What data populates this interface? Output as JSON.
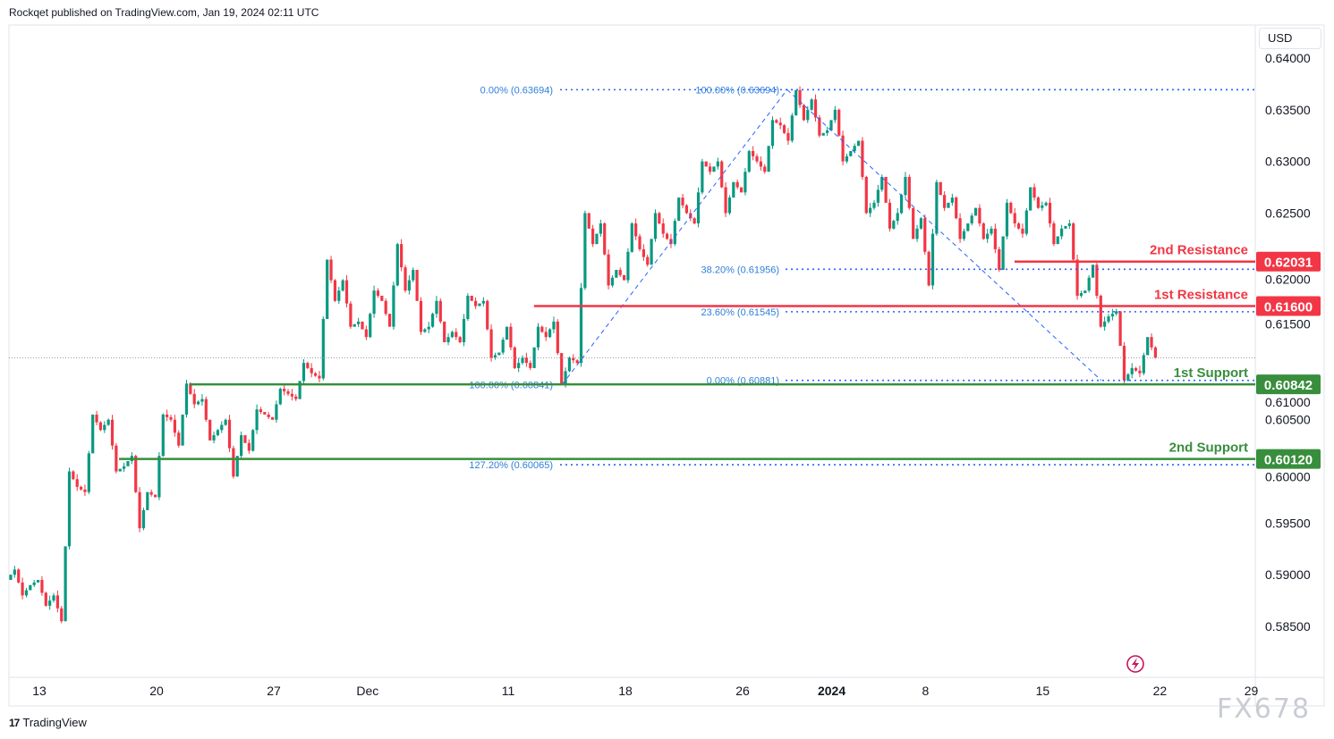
{
  "header": {
    "publisher_line": "Rockqet published on TradingView.com, Jan 19, 2024 02:11 UTC"
  },
  "currency_button": "USD",
  "branding": {
    "logo_text": "TradingView",
    "logo_mark": "17",
    "watermark": "FX678"
  },
  "colors": {
    "up": "#089981",
    "down": "#f23645",
    "resistance": "#f23645",
    "support": "#388e3c",
    "fib": "#2962ff",
    "fib_text": "#2f7fd8"
  },
  "chart_data": {
    "type": "candlestick",
    "title": "",
    "xlabel": "",
    "ylabel": "",
    "ylim": [
      0.585,
      0.64
    ],
    "y_ticks": [
      "0.64000",
      "0.63500",
      "0.63000",
      "0.62500",
      "0.62000",
      "0.61500",
      "0.61000",
      "0.60500",
      "0.60000",
      "0.59500",
      "0.59000",
      "0.58500"
    ],
    "x_ticks": [
      {
        "label": "13",
        "day": 0
      },
      {
        "label": "20",
        "day": 5
      },
      {
        "label": "27",
        "day": 10
      },
      {
        "label": "Dec",
        "day": 14
      },
      {
        "label": "11",
        "day": 20
      },
      {
        "label": "18",
        "day": 25
      },
      {
        "label": "26",
        "day": 30
      },
      {
        "label": "2024",
        "day": 33.8
      },
      {
        "label": "8",
        "day": 37.8
      },
      {
        "label": "15",
        "day": 42.8
      },
      {
        "label": "22",
        "day": 47.8
      },
      {
        "label": "29",
        "day": 51.7
      }
    ],
    "candles_daily_ohlc": [
      [
        "Nov 10",
        0.5895,
        0.5905,
        0.588,
        0.589
      ],
      [
        "Nov 13",
        0.589,
        0.5895,
        0.587,
        0.588
      ],
      [
        "Nov 14",
        0.588,
        0.6,
        0.5855,
        0.5985
      ],
      [
        "Nov 15",
        0.5985,
        0.6055,
        0.598,
        0.604
      ],
      [
        "Nov 16",
        0.604,
        0.605,
        0.6,
        0.6005
      ],
      [
        "Nov 17",
        0.6005,
        0.6015,
        0.5945,
        0.598
      ],
      [
        "Nov 20",
        0.598,
        0.6055,
        0.5975,
        0.605
      ],
      [
        "Nov 21",
        0.605,
        0.6085,
        0.6025,
        0.6065
      ],
      [
        "Nov 22",
        0.6065,
        0.607,
        0.603,
        0.604
      ],
      [
        "Nov 23",
        0.604,
        0.605,
        0.5995,
        0.6035
      ],
      [
        "Nov 24",
        0.6035,
        0.606,
        0.602,
        0.6055
      ],
      [
        "Nov 27",
        0.6055,
        0.608,
        0.605,
        0.6075
      ],
      [
        "Nov 28",
        0.6075,
        0.6105,
        0.607,
        0.6095
      ],
      [
        "Nov 29",
        0.6095,
        0.6205,
        0.609,
        0.6165
      ],
      [
        "Nov 30",
        0.6165,
        0.6185,
        0.614,
        0.6145
      ],
      [
        "Dec 1",
        0.6145,
        0.6175,
        0.613,
        0.6165
      ],
      [
        "Dec 4",
        0.6165,
        0.622,
        0.614,
        0.6175
      ],
      [
        "Dec 5",
        0.6175,
        0.6195,
        0.6135,
        0.614
      ],
      [
        "Dec 6",
        0.614,
        0.6165,
        0.6125,
        0.6135
      ],
      [
        "Dec 7",
        0.6135,
        0.617,
        0.6125,
        0.616
      ],
      [
        "Dec 8",
        0.616,
        0.6165,
        0.611,
        0.6115
      ],
      [
        "Dec 11",
        0.6115,
        0.614,
        0.61,
        0.611
      ],
      [
        "Dec 12",
        0.611,
        0.614,
        0.61,
        0.613
      ],
      [
        "Dec 13",
        0.613,
        0.6145,
        0.6084,
        0.611
      ],
      [
        "Dec 14",
        0.611,
        0.625,
        0.6105,
        0.622
      ],
      [
        "Dec 15",
        0.622,
        0.624,
        0.618,
        0.6195
      ],
      [
        "Dec 18",
        0.6195,
        0.624,
        0.6185,
        0.6215
      ],
      [
        "Dec 19",
        0.6215,
        0.625,
        0.62,
        0.623
      ],
      [
        "Dec 20",
        0.623,
        0.6265,
        0.622,
        0.625
      ],
      [
        "Dec 21",
        0.625,
        0.63,
        0.624,
        0.629
      ],
      [
        "Dec 22",
        0.629,
        0.63,
        0.625,
        0.628
      ],
      [
        "Dec 26",
        0.628,
        0.631,
        0.627,
        0.63
      ],
      [
        "Dec 27",
        0.63,
        0.634,
        0.629,
        0.6335
      ],
      [
        "Dec 28",
        0.6335,
        0.6369,
        0.632,
        0.634
      ],
      [
        "Dec 29",
        0.634,
        0.636,
        0.6325,
        0.633
      ],
      [
        "Jan 2",
        0.633,
        0.635,
        0.63,
        0.631
      ],
      [
        "Jan 3",
        0.631,
        0.632,
        0.625,
        0.626
      ],
      [
        "Jan 4",
        0.626,
        0.6285,
        0.6235,
        0.625
      ],
      [
        "Jan 5",
        0.625,
        0.6285,
        0.6225,
        0.6245
      ],
      [
        "Jan 8",
        0.6245,
        0.628,
        0.618,
        0.6255
      ],
      [
        "Jan 9",
        0.6255,
        0.6265,
        0.6225,
        0.624
      ],
      [
        "Jan 10",
        0.624,
        0.6255,
        0.6225,
        0.6235
      ],
      [
        "Jan 11",
        0.6235,
        0.626,
        0.6195,
        0.624
      ],
      [
        "Jan 12",
        0.624,
        0.6275,
        0.623,
        0.6255
      ],
      [
        "Jan 15",
        0.6255,
        0.626,
        0.622,
        0.6235
      ],
      [
        "Jan 16",
        0.6235,
        0.624,
        0.617,
        0.6175
      ],
      [
        "Jan 17",
        0.6175,
        0.62,
        0.614,
        0.615
      ],
      [
        "Jan 18",
        0.615,
        0.6155,
        0.6088,
        0.61
      ],
      [
        "Jan 19",
        0.61,
        0.613,
        0.6095,
        0.611
      ]
    ],
    "last_price": 0.611,
    "levels": [
      {
        "name": "2nd Resistance",
        "label": "2nd Resistance",
        "value": 0.62031,
        "price_tag": "0.62031",
        "kind": "resistance",
        "from_day": 41.6
      },
      {
        "name": "1st Resistance",
        "label": "1st Resistance",
        "value": 0.616,
        "price_tag": "0.61600",
        "kind": "resistance",
        "from_day": 21.1
      },
      {
        "name": "1st Support",
        "label": "1st Support",
        "value": 0.60842,
        "price_tag": "0.60842",
        "kind": "support",
        "from_day": 6.4
      },
      {
        "name": "2nd Support",
        "label": "2nd Support",
        "value": 0.6012,
        "price_tag": "0.60120",
        "kind": "support",
        "from_day": 3.4
      }
    ],
    "fib_extension_left": [
      {
        "label": "0.00% (0.63694)",
        "value": 0.63694
      },
      {
        "label": "100.00% (0.60841)",
        "value": 0.60841
      },
      {
        "label": "127.20% (0.60065)",
        "value": 0.60065
      }
    ],
    "fib_retracement_right": [
      {
        "label": "100.00% (0.63694)",
        "value": 0.63694
      },
      {
        "label": "38.20% (0.61956)",
        "value": 0.61956
      },
      {
        "label": "23.60% (0.61545)",
        "value": 0.61545
      },
      {
        "label": "0.00% (0.60881)",
        "value": 0.60881
      }
    ],
    "zigzag": [
      {
        "day": 22.3,
        "value": 0.6084
      },
      {
        "day": 31.9,
        "value": 0.63694
      },
      {
        "day": 45.3,
        "value": 0.60881
      }
    ]
  }
}
